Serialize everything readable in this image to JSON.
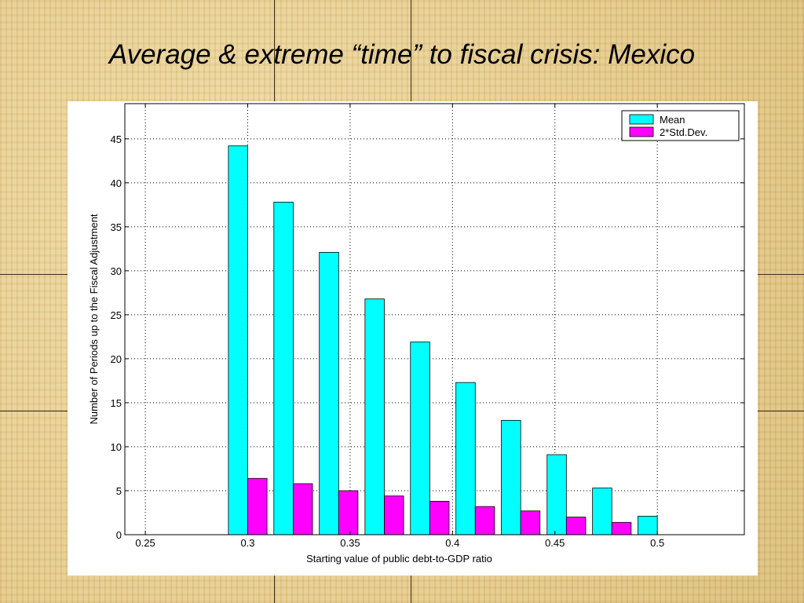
{
  "slide": {
    "title": "Average & extreme “time” to fiscal crisis: Mexico"
  },
  "chart_data": {
    "type": "bar",
    "xlabel": "Starting value of public debt-to-GDP ratio",
    "ylabel": "Number of Periods up to the Fiscal Adjustment",
    "xlim": [
      0.24,
      0.5425
    ],
    "ylim": [
      0,
      49
    ],
    "xticks": [
      0.25,
      0.3,
      0.35,
      0.4,
      0.45,
      0.5
    ],
    "xtick_labels": [
      "0.25",
      "0.3",
      "0.35",
      "0.4",
      "0.45",
      "0.5"
    ],
    "yticks": [
      0,
      5,
      10,
      15,
      20,
      25,
      30,
      35,
      40,
      45
    ],
    "ytick_labels": [
      "0",
      "5",
      "10",
      "15",
      "20",
      "25",
      "30",
      "35",
      "40",
      "45"
    ],
    "grid": true,
    "legend_position": "top-right",
    "categories": [
      0.3,
      0.3222,
      0.3444,
      0.3667,
      0.3889,
      0.4111,
      0.4333,
      0.4556,
      0.4778,
      0.5
    ],
    "series": [
      {
        "name": "Mean",
        "color": "#00ffff",
        "values": [
          44.2,
          37.8,
          32.1,
          26.8,
          21.9,
          17.3,
          13.0,
          9.1,
          5.3,
          2.1
        ]
      },
      {
        "name": "2*Std.Dev.",
        "color": "#ff00ff",
        "values": [
          6.4,
          5.8,
          5.0,
          4.4,
          3.8,
          3.2,
          2.7,
          2.0,
          1.4,
          null
        ]
      }
    ]
  }
}
